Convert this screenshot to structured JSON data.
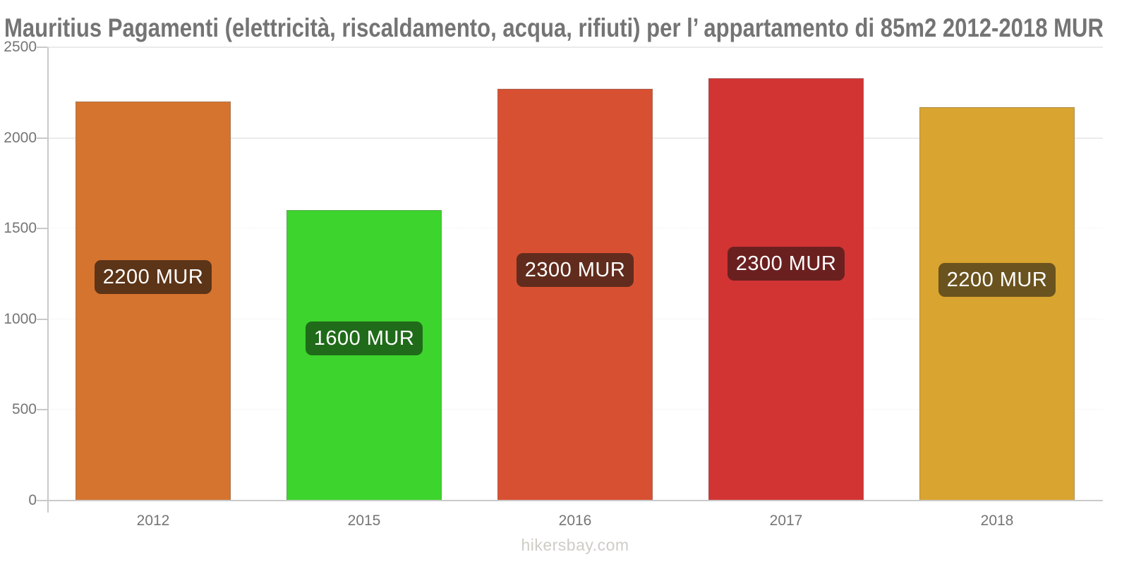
{
  "title": "Mauritius Pagamenti (elettricità, riscaldamento, acqua, rifiuti) per l’ appartamento di 85m2 2012-2018 MUR",
  "footer": "hikersbay.com",
  "chart_data": {
    "type": "bar",
    "title": "Mauritius Pagamenti (elettricità, riscaldamento, acqua, rifiuti) per l’ appartamento di 85m2 2012-2018 MUR",
    "unit": "MUR",
    "categories": [
      "2012",
      "2015",
      "2016",
      "2017",
      "2018"
    ],
    "values": [
      2200,
      1600,
      2270,
      2330,
      2170
    ],
    "bar_labels": [
      "2200 MUR",
      "1600 MUR",
      "2300 MUR",
      "2300 MUR",
      "2200 MUR"
    ],
    "bar_colors": [
      "#D5742F",
      "#3DD42D",
      "#D85032",
      "#D23434",
      "#D9A42F"
    ],
    "label_bg_colors": [
      "#5C3417",
      "#206B19",
      "#612C1D",
      "#6B2020",
      "#6A531E"
    ],
    "xlabel": "",
    "ylabel": "",
    "ylim": [
      0,
      2500
    ],
    "yticks": [
      0,
      500,
      1000,
      1500,
      2000,
      2500
    ],
    "ytick_labels": [
      "0",
      "500",
      "1000",
      "1500",
      "2000",
      "2500"
    ],
    "grid": "horizontal",
    "legend": "none"
  },
  "colors": {
    "title_text": "#747474",
    "axis_text": "#757575",
    "axis_line": "#c9c9c9",
    "gridline": "#ebebeb",
    "bar_label_text": "#ffffff",
    "footer_text": "#cfccc6",
    "background": "#ffffff"
  }
}
